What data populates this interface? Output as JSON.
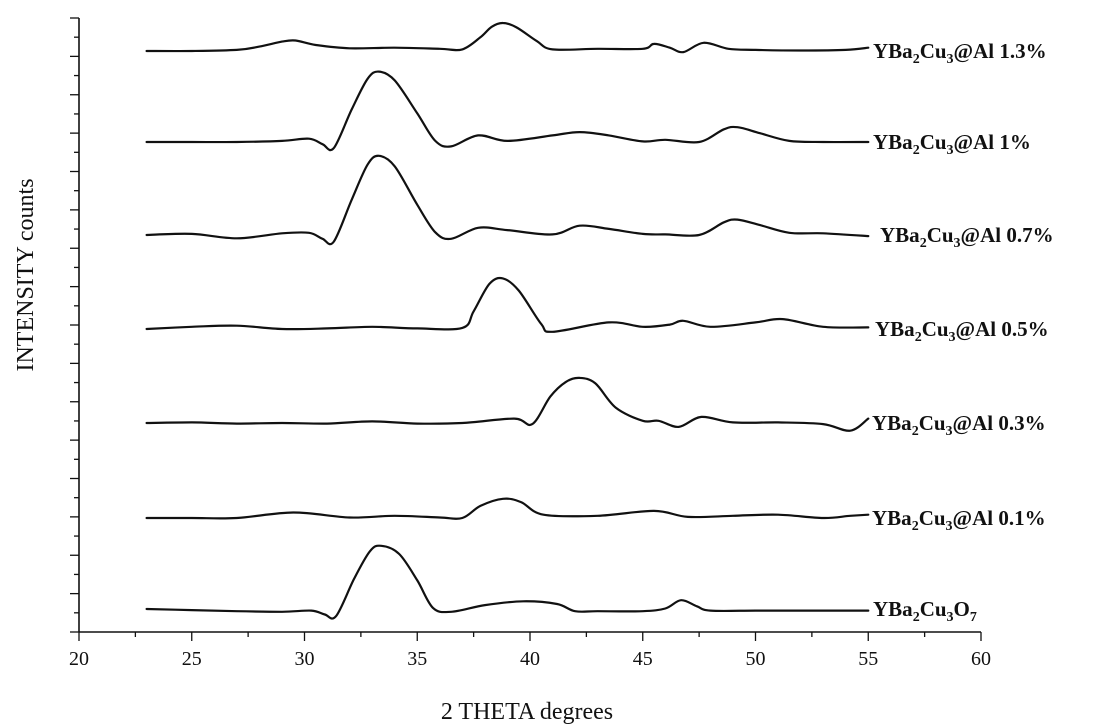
{
  "chart_data": {
    "type": "line",
    "title": "",
    "xlabel": "2 THETA degrees",
    "ylabel": "INTENSITY counts",
    "xlim": [
      20,
      60
    ],
    "x_ticks": [
      20,
      25,
      30,
      35,
      40,
      45,
      50,
      55,
      60
    ],
    "x_tick_labels": [
      "20",
      "25",
      "30",
      "35",
      "40",
      "45",
      "50",
      "55",
      "60"
    ],
    "y_tick_labels_shown": false,
    "offset_stacked": true,
    "series": [
      {
        "name": "YBa₂Cu₃@Al 1.3%",
        "x": [
          23,
          25,
          27,
          28,
          29,
          29.6,
          30.5,
          32,
          34,
          36,
          37,
          37.8,
          38.3,
          38.8,
          39.4,
          40.3,
          41,
          43,
          45,
          45.5,
          46.2,
          46.8,
          47.7,
          48.8,
          50,
          52,
          54,
          55
        ],
        "values": [
          0,
          0,
          0.2,
          0.8,
          1.7,
          1.9,
          1.1,
          0.5,
          0.6,
          0.4,
          0.3,
          2.5,
          4.4,
          5.1,
          4.3,
          1.8,
          0.3,
          0.4,
          0.4,
          1.3,
          0.6,
          -0.2,
          1.5,
          0.4,
          0.2,
          0.1,
          0.2,
          0.6
        ]
      },
      {
        "name": "YBa₂Cu₃@Al 1%",
        "x": [
          23,
          25,
          27,
          29,
          30.2,
          30.8,
          31.3,
          32.1,
          32.8,
          33.3,
          34,
          35,
          35.8,
          36.5,
          37.7,
          39,
          41,
          42.2,
          43.5,
          45,
          46,
          47.5,
          48.6,
          49.2,
          50.2,
          51.5,
          53,
          55
        ],
        "values": [
          0,
          0,
          0,
          0.2,
          0.6,
          -0.4,
          -1.1,
          6,
          11.5,
          12.8,
          11.2,
          5.2,
          0.2,
          -0.8,
          1.2,
          0.2,
          1.2,
          1.8,
          1.2,
          0.1,
          0.4,
          0,
          2.3,
          2.7,
          1.6,
          0.2,
          0,
          0
        ]
      },
      {
        "name": "YBa₂Cu₃@Al 0.7%",
        "x": [
          23,
          25,
          27,
          29,
          30.2,
          30.8,
          31.3,
          32.1,
          32.8,
          33.3,
          34,
          35,
          35.8,
          36.5,
          37.7,
          39,
          41,
          42.2,
          43.5,
          45,
          46,
          47.5,
          48.6,
          49.2,
          50.2,
          51.5,
          53,
          55
        ],
        "values": [
          0,
          0.2,
          -0.6,
          0.3,
          0.4,
          -0.7,
          -1.2,
          6.5,
          12.8,
          14.4,
          12.5,
          5.5,
          0.5,
          -0.7,
          1.3,
          0.9,
          0.1,
          1.7,
          1.1,
          0.2,
          0.1,
          0,
          2.3,
          2.8,
          1.8,
          0.4,
          0.3,
          -0.2
        ]
      },
      {
        "name": "YBa₂Cu₃@Al 0.5%",
        "x": [
          23,
          25,
          27,
          29,
          31,
          33,
          35,
          37,
          37.5,
          38.2,
          38.8,
          39.5,
          40.5,
          41,
          43.5,
          45,
          46.2,
          46.8,
          48,
          50,
          51.2,
          53,
          55
        ],
        "values": [
          0,
          0.4,
          0.6,
          0,
          0.1,
          0.4,
          0.1,
          0.2,
          3.2,
          8.2,
          9.2,
          7,
          0.9,
          -0.5,
          1.2,
          0.4,
          0.8,
          1.5,
          0.4,
          1.2,
          1.8,
          0.4,
          0.3
        ]
      },
      {
        "name": "YBa₂Cu₃@Al 0.3%",
        "x": [
          23,
          25,
          27,
          29,
          31,
          33,
          35,
          37,
          39.3,
          40.1,
          40.9,
          41.6,
          42.2,
          42.9,
          43.8,
          45,
          45.7,
          46.6,
          47.6,
          49,
          51,
          53,
          54.2,
          55
        ],
        "values": [
          0,
          0.1,
          -0.1,
          0,
          -0.1,
          0.3,
          -0.1,
          0,
          0.8,
          -0.2,
          4.8,
          7.5,
          8.2,
          7.2,
          2.8,
          0.4,
          0.4,
          -0.7,
          1.1,
          0.1,
          0.1,
          -0.2,
          -1.4,
          0.8
        ]
      },
      {
        "name": "YBa₂Cu₃@Al 0.1%",
        "x": [
          23,
          25,
          27,
          29.5,
          32,
          34,
          36,
          37,
          37.8,
          38.8,
          39.6,
          40.6,
          43,
          45.5,
          47,
          49,
          51,
          53,
          54.2,
          55
        ],
        "values": [
          0,
          0,
          0,
          1,
          0.1,
          0.4,
          0.1,
          0,
          2.2,
          3.5,
          2.9,
          0.6,
          0.4,
          1.3,
          0.2,
          0.4,
          0.6,
          0,
          0.4,
          0.6
        ]
      },
      {
        "name": "YBa₂Cu₃O₇",
        "x": [
          23,
          25,
          27,
          29,
          30.3,
          30.9,
          31.4,
          32.2,
          32.9,
          33.4,
          34.2,
          35,
          35.7,
          36.5,
          38,
          39.7,
          41.2,
          42,
          43,
          45,
          46,
          46.7,
          47.4,
          48,
          50,
          52,
          55
        ],
        "values": [
          0,
          -0.2,
          -0.4,
          -0.5,
          -0.3,
          -1,
          -1.3,
          5.5,
          10.5,
          11.5,
          10,
          5.2,
          0.2,
          -0.5,
          0.7,
          1.4,
          0.9,
          -0.4,
          -0.4,
          -0.4,
          0.1,
          1.6,
          0.5,
          -0.3,
          -0.3,
          -0.3,
          -0.3
        ]
      }
    ],
    "series_label_parts": [
      {
        "prefix": "YBa",
        "sub1": "2",
        "mid": "Cu",
        "sub2": "3",
        "suffix": "@Al 1.3%"
      },
      {
        "prefix": "YBa",
        "sub1": "2",
        "mid": "Cu",
        "sub2": "3",
        "suffix": "@Al 1%"
      },
      {
        "prefix": "YBa",
        "sub1": "2",
        "mid": "Cu",
        "sub2": "3",
        "suffix": "@Al 0.7%"
      },
      {
        "prefix": "YBa",
        "sub1": "2",
        "mid": "Cu",
        "sub2": "3",
        "suffix": "@Al 0.5%"
      },
      {
        "prefix": "YBa",
        "sub1": "2",
        "mid": "Cu",
        "sub2": "3",
        "suffix": "@Al 0.3%"
      },
      {
        "prefix": "YBa",
        "sub1": "2",
        "mid": "Cu",
        "sub2": "3",
        "suffix": "@Al 0.1%"
      },
      {
        "prefix": "YBa",
        "sub1": "2",
        "mid": "Cu",
        "sub2": "3",
        "suffix": "O",
        "sub3": "7"
      }
    ]
  }
}
